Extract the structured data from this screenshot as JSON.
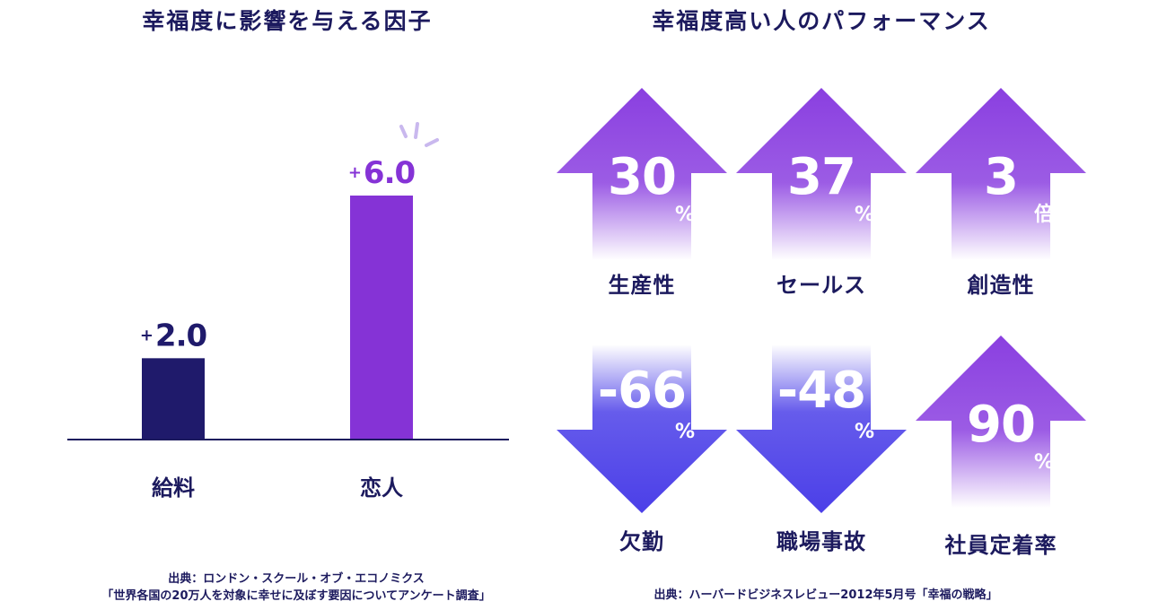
{
  "left": {
    "title": "幸福度に影響を与える因子",
    "source_line1": "出典：ロンドン・スクール・オブ・エコノミクス",
    "source_line2": "「世界各国の20万人を対象に幸せに及ぼす要因についてアンケート調査」"
  },
  "right": {
    "title": "幸福度高い人のパフォーマンス",
    "source": "出典：ハーバードビジネスレビュー2012年5月号「幸福の戦略」",
    "items": [
      {
        "value": "30",
        "unit": "%",
        "label": "生産性",
        "direction": "up",
        "color": "#8a3fe0"
      },
      {
        "value": "37",
        "unit": "%",
        "label": "セールス",
        "direction": "up",
        "color": "#8a3fe0"
      },
      {
        "value": "3",
        "unit": "倍",
        "label": "創造性",
        "direction": "up",
        "color": "#8a3fe0"
      },
      {
        "value": "-66",
        "unit": "%",
        "label": "欠勤",
        "direction": "down",
        "color": "#4b3fe8"
      },
      {
        "value": "-48",
        "unit": "%",
        "label": "職場事故",
        "direction": "down",
        "color": "#4b3fe8"
      },
      {
        "value": "90",
        "unit": "%",
        "label": "社員定着率",
        "direction": "up",
        "color": "#8a3fe0"
      }
    ]
  },
  "chart_data": [
    {
      "type": "bar",
      "title": "幸福度に影響を与える因子",
      "categories": [
        "給料",
        "恋人"
      ],
      "values": [
        2.0,
        6.0
      ],
      "labels": [
        "+2.0",
        "+6.0"
      ],
      "colors": [
        "#1f1a6b",
        "#8533d6"
      ],
      "ylim": [
        0,
        6.0
      ],
      "grid": false
    }
  ]
}
